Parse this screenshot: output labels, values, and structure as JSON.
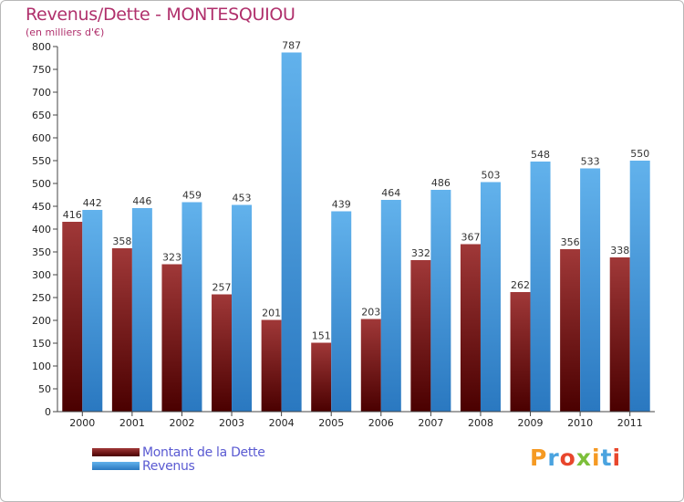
{
  "header": {
    "title": "Revenus/Dette - MONTESQUIOU",
    "subtitle": "(en milliers d'€)"
  },
  "brand": {
    "text": "Proxiti",
    "letter_colors": [
      "#f59a23",
      "#4aa3df",
      "#e8462c",
      "#7cbf3a",
      "#f59a23",
      "#4aa3df",
      "#e8462c"
    ]
  },
  "colors": {
    "dette_dark": "#4a0000",
    "dette_light": "#a03838",
    "revenus_dark": "#2a78c0",
    "revenus_light": "#62b2ec",
    "axis": "#444444",
    "grid": "#dddddd"
  },
  "chart_data": {
    "type": "bar",
    "title": "Revenus/Dette - MONTESQUIOU",
    "ylabel": "(en milliers d'€)",
    "xlabel": "",
    "categories": [
      "2000",
      "2001",
      "2002",
      "2003",
      "2004",
      "2005",
      "2006",
      "2007",
      "2008",
      "2009",
      "2010",
      "2011"
    ],
    "ylim": [
      0,
      800
    ],
    "yticks": [
      0,
      50,
      100,
      150,
      200,
      250,
      300,
      350,
      400,
      450,
      500,
      550,
      600,
      650,
      700,
      750,
      800
    ],
    "grid": false,
    "legend_position": "bottom-left",
    "series": [
      {
        "name": "Montant de la Dette",
        "values": [
          416,
          358,
          323,
          257,
          201,
          151,
          203,
          332,
          367,
          262,
          356,
          338
        ]
      },
      {
        "name": "Revenus",
        "values": [
          442,
          446,
          459,
          453,
          787,
          439,
          464,
          486,
          503,
          548,
          533,
          550
        ]
      }
    ]
  }
}
